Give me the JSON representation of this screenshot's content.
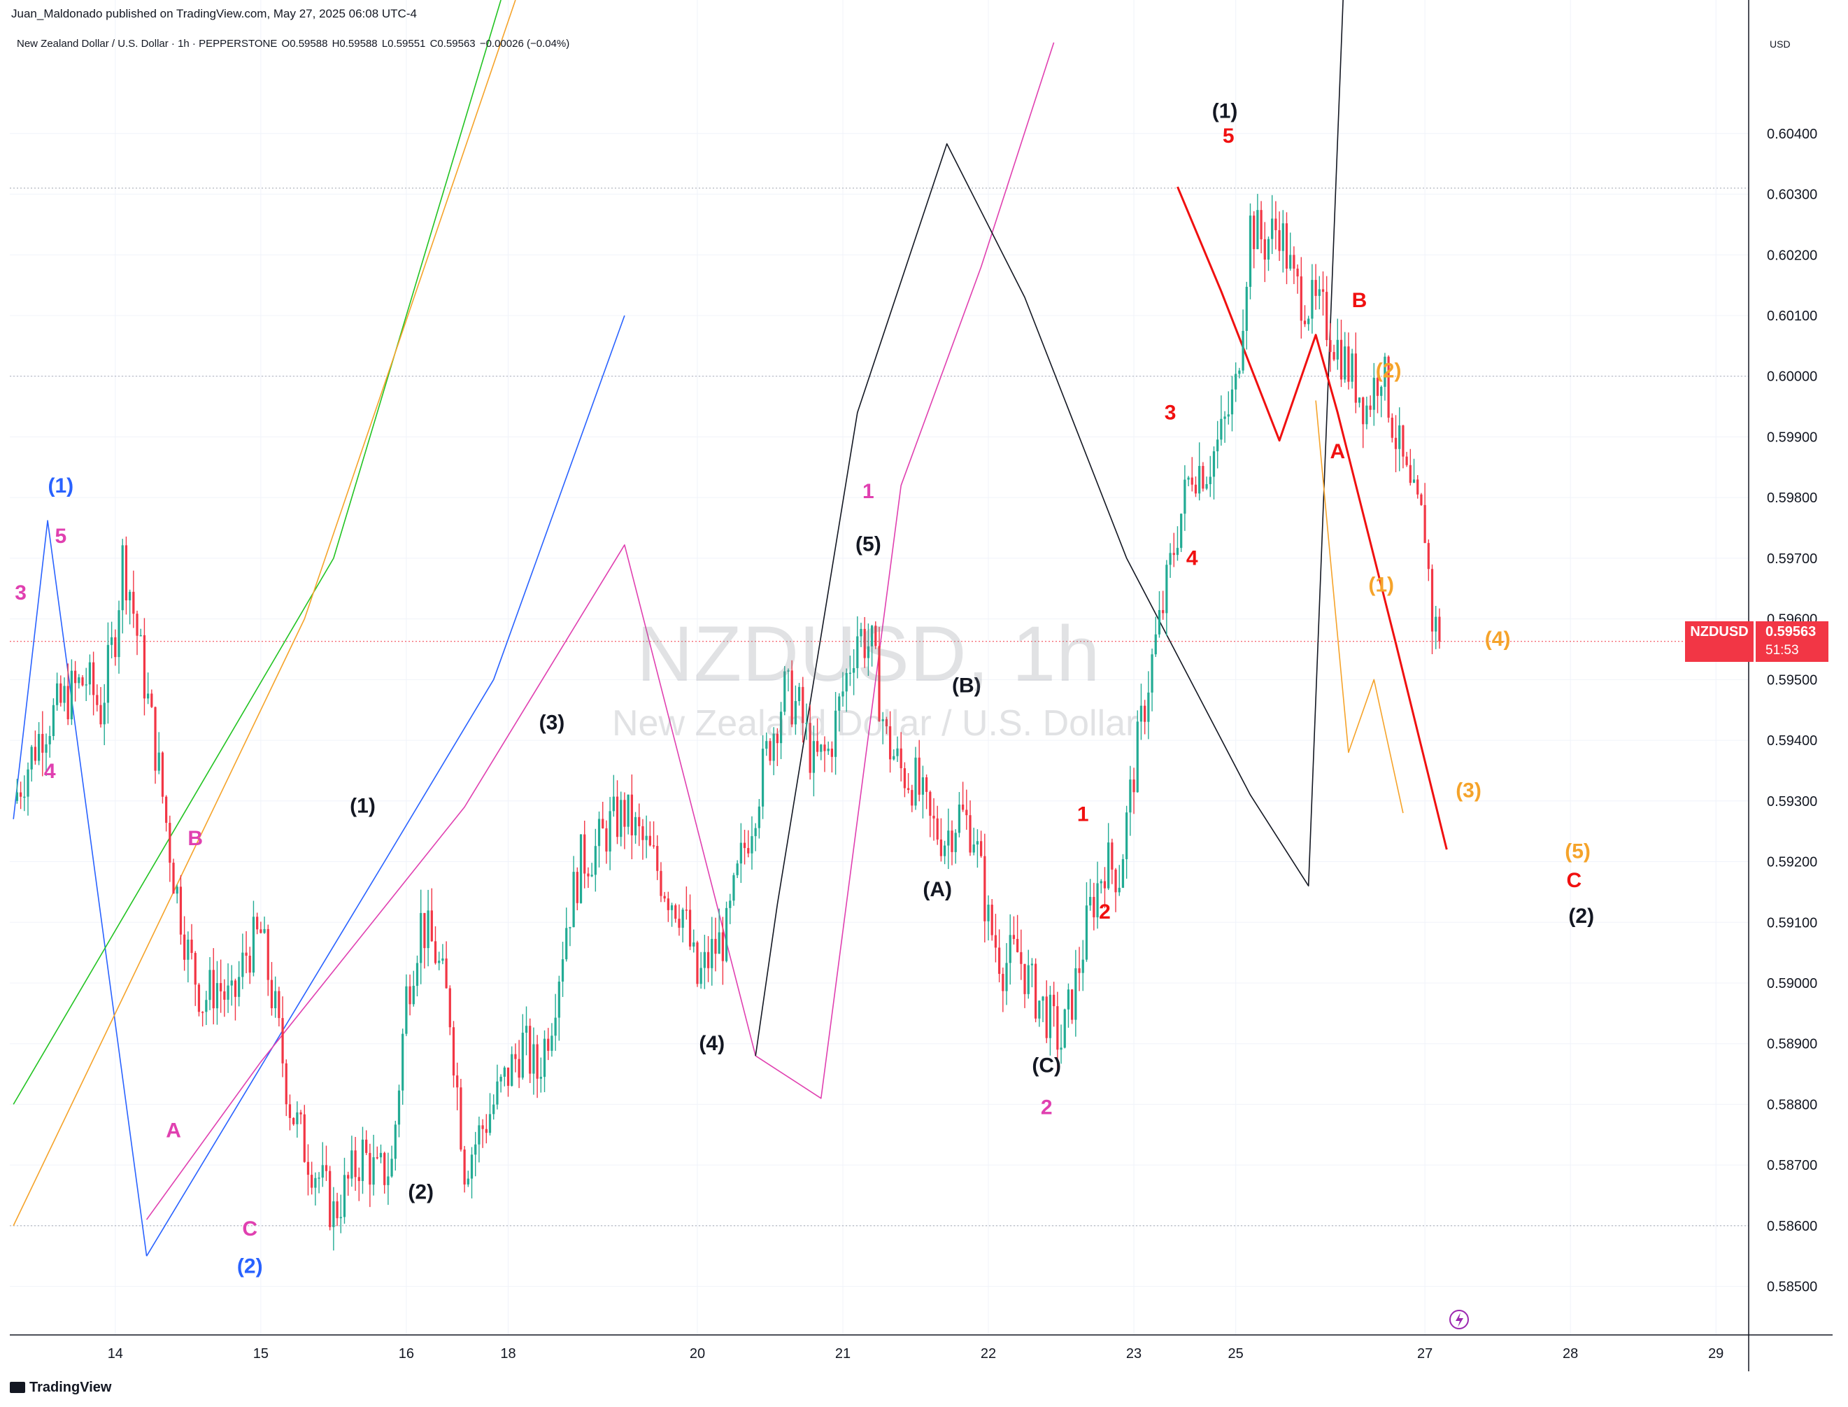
{
  "header": {
    "published": "Juan_Maldonado published on TradingView.com, May 27, 2025 06:08 UTC-4",
    "symbol_line": "New Zealand Dollar / U.S. Dollar · 1h · PEPPERSTONE",
    "ohlc": {
      "o": "O0.59588",
      "h": "H0.59588",
      "l": "L0.59551",
      "c": "C0.59563",
      "chg": "−0.00026 (−0.04%)"
    }
  },
  "currency": "USD",
  "watermark": {
    "big": "NZDUSD, 1h",
    "small": "New Zealand Dollar / U.S. Dollar"
  },
  "price_tag": {
    "symbol": "NZDUSD",
    "price": "0.59563",
    "countdown": "51:53"
  },
  "footer": {
    "brand": "TradingView"
  },
  "colors": {
    "up": "#22ab94",
    "down": "#f23645",
    "blue": "#2962ff",
    "magenta": "#e040b0",
    "red": "#f01010",
    "orange": "#f5a32a",
    "green": "#22c322",
    "black": "#131722"
  },
  "chart_data": {
    "type": "candlestick",
    "title": "NZDUSD, 1h",
    "ylim": [
      0.5842,
      0.6062
    ],
    "y_ticks": [
      "0.58500",
      "0.58600",
      "0.58700",
      "0.58800",
      "0.58900",
      "0.59000",
      "0.59100",
      "0.59200",
      "0.59300",
      "0.59400",
      "0.59500",
      "0.59600",
      "0.59700",
      "0.59800",
      "0.59900",
      "0.60000",
      "0.60100",
      "0.60200",
      "0.60300",
      "0.60400"
    ],
    "x_ticks": [
      {
        "label": "14",
        "t": 10
      },
      {
        "label": "15",
        "t": 30
      },
      {
        "label": "16",
        "t": 50
      },
      {
        "label": "18",
        "t": 64
      },
      {
        "label": "20",
        "t": 90
      },
      {
        "label": "21",
        "t": 110
      },
      {
        "label": "22",
        "t": 130
      },
      {
        "label": "23",
        "t": 150
      },
      {
        "label": "25",
        "t": 164
      },
      {
        "label": "27",
        "t": 190
      },
      {
        "label": "28",
        "t": 210
      },
      {
        "label": "29",
        "t": 230
      }
    ],
    "t_range": [
      -4.5,
      234.5
    ],
    "series_path": [
      [
        -4,
        0.593
      ],
      [
        0,
        0.5942
      ],
      [
        4,
        0.5948
      ],
      [
        6,
        0.595
      ],
      [
        8,
        0.5945
      ],
      [
        10,
        0.5958
      ],
      [
        11,
        0.597
      ],
      [
        12,
        0.5965
      ],
      [
        14,
        0.595
      ],
      [
        16,
        0.5935
      ],
      [
        18,
        0.5918
      ],
      [
        20,
        0.5905
      ],
      [
        22,
        0.5897
      ],
      [
        24,
        0.59
      ],
      [
        26,
        0.5896
      ],
      [
        28,
        0.5905
      ],
      [
        30,
        0.5908
      ],
      [
        32,
        0.5895
      ],
      [
        34,
        0.588
      ],
      [
        36,
        0.5873
      ],
      [
        38,
        0.5868
      ],
      [
        40,
        0.5862
      ],
      [
        42,
        0.5867
      ],
      [
        44,
        0.5872
      ],
      [
        46,
        0.5868
      ],
      [
        48,
        0.587
      ],
      [
        50,
        0.5898
      ],
      [
        52,
        0.591
      ],
      [
        54,
        0.5905
      ],
      [
        56,
        0.5895
      ],
      [
        58,
        0.587
      ],
      [
        60,
        0.5875
      ],
      [
        62,
        0.588
      ],
      [
        64,
        0.5885
      ],
      [
        66,
        0.589
      ],
      [
        68,
        0.5885
      ],
      [
        70,
        0.5895
      ],
      [
        72,
        0.591
      ],
      [
        74,
        0.592
      ],
      [
        76,
        0.5922
      ],
      [
        78,
        0.5926
      ],
      [
        80,
        0.5928
      ],
      [
        82,
        0.5924
      ],
      [
        84,
        0.592
      ],
      [
        86,
        0.5915
      ],
      [
        88,
        0.5912
      ],
      [
        90,
        0.59
      ],
      [
        92,
        0.5905
      ],
      [
        94,
        0.5908
      ],
      [
        96,
        0.592
      ],
      [
        98,
        0.593
      ],
      [
        100,
        0.594
      ],
      [
        102,
        0.5948
      ],
      [
        104,
        0.5945
      ],
      [
        106,
        0.5936
      ],
      [
        108,
        0.5938
      ],
      [
        110,
        0.5948
      ],
      [
        112,
        0.5958
      ],
      [
        114,
        0.5955
      ],
      [
        116,
        0.594
      ],
      [
        118,
        0.5935
      ],
      [
        120,
        0.5933
      ],
      [
        122,
        0.5926
      ],
      [
        124,
        0.5924
      ],
      [
        126,
        0.5928
      ],
      [
        128,
        0.5925
      ],
      [
        130,
        0.591
      ],
      [
        132,
        0.5903
      ],
      [
        134,
        0.5905
      ],
      [
        136,
        0.5899
      ],
      [
        138,
        0.5895
      ],
      [
        140,
        0.589
      ],
      [
        142,
        0.59
      ],
      [
        144,
        0.5912
      ],
      [
        146,
        0.592
      ],
      [
        148,
        0.5918
      ],
      [
        150,
        0.5935
      ],
      [
        152,
        0.595
      ],
      [
        154,
        0.5962
      ],
      [
        156,
        0.5975
      ],
      [
        158,
        0.5985
      ],
      [
        160,
        0.5985
      ],
      [
        162,
        0.599
      ],
      [
        164,
        0.5998
      ],
      [
        166,
        0.6025
      ],
      [
        168,
        0.6022
      ],
      [
        170,
        0.6025
      ],
      [
        172,
        0.6015
      ],
      [
        174,
        0.6012
      ],
      [
        176,
        0.601
      ],
      [
        178,
        0.6005
      ],
      [
        180,
        0.6
      ],
      [
        182,
        0.5995
      ],
      [
        184,
        0.6002
      ],
      [
        186,
        0.599
      ],
      [
        188,
        0.598
      ],
      [
        190,
        0.5975
      ],
      [
        191,
        0.596
      ],
      [
        192,
        0.5957
      ]
    ],
    "last_close": 0.59563,
    "wave_lines": [
      {
        "color": "blue",
        "points": [
          [
            -4,
            0.5927
          ],
          [
            0.7,
            0.59762
          ],
          [
            14.3,
            0.5855
          ]
        ]
      },
      {
        "color": "blue",
        "points": [
          [
            14.3,
            0.5855
          ],
          [
            47,
            0.592
          ],
          [
            62,
            0.595
          ],
          [
            80,
            0.601
          ]
        ]
      },
      {
        "color": "magenta",
        "points": [
          [
            14.3,
            0.5861
          ],
          [
            30,
            0.5887
          ],
          [
            58,
            0.5929
          ],
          [
            80,
            0.59722
          ],
          [
            98,
            0.5888
          ],
          [
            107,
            0.5881
          ],
          [
            118,
            0.5982
          ],
          [
            129,
            0.6018
          ],
          [
            139,
            0.6055
          ]
        ]
      },
      {
        "color": "black",
        "points": [
          [
            98,
            0.5888
          ],
          [
            101,
            0.5913
          ],
          [
            112,
            0.5994
          ],
          [
            124.3,
            0.60383
          ],
          [
            135,
            0.6013
          ],
          [
            149,
            0.597
          ],
          [
            166,
            0.5931
          ],
          [
            174,
            0.5916
          ],
          [
            179.4,
            0.6082
          ]
        ]
      },
      {
        "color": "red",
        "points": [
          [
            156,
            0.60312
          ],
          [
            162,
            0.6014
          ],
          [
            170,
            0.59894
          ],
          [
            175,
            0.60068
          ],
          [
            178,
            0.5994
          ],
          [
            186,
            0.5956
          ],
          [
            193,
            0.5922
          ]
        ]
      },
      {
        "color": "orange",
        "points": [
          [
            175,
            0.5996
          ],
          [
            177,
            0.597
          ],
          [
            179.5,
            0.5938
          ],
          [
            183,
            0.595
          ],
          [
            187,
            0.5928
          ]
        ]
      },
      {
        "color": "green",
        "points": [
          [
            -4,
            0.588
          ],
          [
            40,
            0.597
          ],
          [
            63,
            0.6062
          ]
        ]
      },
      {
        "color": "orange",
        "points": [
          [
            -4,
            0.586
          ],
          [
            36,
            0.596
          ],
          [
            65,
            0.6062
          ]
        ]
      }
    ],
    "wave_labels": [
      {
        "text": "(1)",
        "t": 2.5,
        "price": 0.59808,
        "color": "blue"
      },
      {
        "text": "5",
        "t": 2.5,
        "price": 0.59725,
        "color": "magenta"
      },
      {
        "text": "3",
        "t": -3,
        "price": 0.59632,
        "color": "magenta"
      },
      {
        "text": "4",
        "t": 1,
        "price": 0.59338,
        "color": "magenta"
      },
      {
        "text": "B",
        "t": 21,
        "price": 0.59227,
        "color": "magenta"
      },
      {
        "text": "A",
        "t": 18,
        "price": 0.58746,
        "color": "magenta"
      },
      {
        "text": "C",
        "t": 28.5,
        "price": 0.58584,
        "color": "magenta"
      },
      {
        "text": "(2)",
        "t": 28.5,
        "price": 0.58522,
        "color": "blue"
      },
      {
        "text": "(1)",
        "t": 44,
        "price": 0.59281,
        "color": "black"
      },
      {
        "text": "(2)",
        "t": 52,
        "price": 0.58644,
        "color": "black"
      },
      {
        "text": "(3)",
        "t": 70,
        "price": 0.59418,
        "color": "black"
      },
      {
        "text": "(4)",
        "t": 92,
        "price": 0.58889,
        "color": "black"
      },
      {
        "text": "1",
        "t": 113.5,
        "price": 0.59799,
        "color": "magenta"
      },
      {
        "text": "(5)",
        "t": 113.5,
        "price": 0.59712,
        "color": "black"
      },
      {
        "text": "(B)",
        "t": 127,
        "price": 0.59479,
        "color": "black"
      },
      {
        "text": "(A)",
        "t": 123,
        "price": 0.59143,
        "color": "black"
      },
      {
        "text": "(C)",
        "t": 138,
        "price": 0.58853,
        "color": "black"
      },
      {
        "text": "2",
        "t": 138,
        "price": 0.58784,
        "color": "magenta"
      },
      {
        "text": "1",
        "t": 143,
        "price": 0.59267,
        "color": "red"
      },
      {
        "text": "2",
        "t": 146,
        "price": 0.59106,
        "color": "red"
      },
      {
        "text": "3",
        "t": 155,
        "price": 0.59929,
        "color": "red"
      },
      {
        "text": "4",
        "t": 158,
        "price": 0.59689,
        "color": "red"
      },
      {
        "text": "(1)",
        "t": 162.5,
        "price": 0.60426,
        "color": "black"
      },
      {
        "text": "5",
        "t": 163,
        "price": 0.60385,
        "color": "red"
      },
      {
        "text": "B",
        "t": 181,
        "price": 0.60114,
        "color": "red"
      },
      {
        "text": "A",
        "t": 178,
        "price": 0.59865,
        "color": "red"
      },
      {
        "text": "(2)",
        "t": 185,
        "price": 0.59998,
        "color": "orange"
      },
      {
        "text": "(1)",
        "t": 184,
        "price": 0.59645,
        "color": "orange"
      },
      {
        "text": "(4)",
        "t": 200,
        "price": 0.59556,
        "color": "orange"
      },
      {
        "text": "(3)",
        "t": 196,
        "price": 0.59306,
        "color": "orange"
      },
      {
        "text": "(5)",
        "t": 211,
        "price": 0.59206,
        "color": "orange"
      },
      {
        "text": "C",
        "t": 210.5,
        "price": 0.59158,
        "color": "red"
      },
      {
        "text": "(2)",
        "t": 211.5,
        "price": 0.59099,
        "color": "black"
      }
    ]
  }
}
